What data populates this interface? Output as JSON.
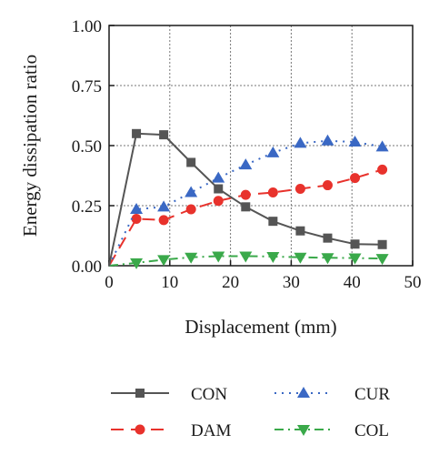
{
  "chart_data": {
    "type": "line",
    "xlabel": "Displacement (mm)",
    "ylabel": "Energy dissipation ratio",
    "xlim": [
      0,
      50
    ],
    "ylim": [
      0,
      1.0
    ],
    "x_ticks": [
      "0",
      "10",
      "20",
      "30",
      "40",
      "50"
    ],
    "y_ticks": [
      "0.00",
      "0.25",
      "0.50",
      "0.75",
      "1.00"
    ],
    "grid": true,
    "legend_position": "bottom",
    "series": [
      {
        "name": "CON",
        "color": "#555555",
        "marker": "square",
        "line_style": "solid",
        "x": [
          0,
          4.5,
          9,
          13.5,
          18,
          22.5,
          27,
          31.5,
          36,
          40.5,
          45
        ],
        "y": [
          0,
          0.55,
          0.545,
          0.43,
          0.32,
          0.245,
          0.185,
          0.145,
          0.115,
          0.09,
          0.088
        ]
      },
      {
        "name": "DAM",
        "color": "#e8322c",
        "marker": "circle",
        "line_style": "dashed",
        "x": [
          0,
          4.5,
          9,
          13.5,
          18,
          22.5,
          27,
          31.5,
          36,
          40.5,
          45
        ],
        "y": [
          0,
          0.195,
          0.19,
          0.235,
          0.27,
          0.295,
          0.305,
          0.32,
          0.335,
          0.365,
          0.4
        ]
      },
      {
        "name": "CUR",
        "color": "#3a68c4",
        "marker": "triangle-up",
        "line_style": "dotted",
        "x": [
          0,
          4.5,
          9,
          13.5,
          18,
          22.5,
          27,
          31.5,
          36,
          40.5,
          45
        ],
        "y": [
          0,
          0.235,
          0.245,
          0.305,
          0.365,
          0.42,
          0.47,
          0.51,
          0.52,
          0.515,
          0.495
        ]
      },
      {
        "name": "COL",
        "color": "#3aa94a",
        "marker": "triangle-down",
        "line_style": "dash-dot",
        "x": [
          0,
          4.5,
          9,
          13.5,
          18,
          22.5,
          27,
          31.5,
          36,
          40.5,
          45
        ],
        "y": [
          0,
          0.012,
          0.025,
          0.035,
          0.04,
          0.04,
          0.038,
          0.035,
          0.033,
          0.032,
          0.03
        ]
      }
    ]
  }
}
